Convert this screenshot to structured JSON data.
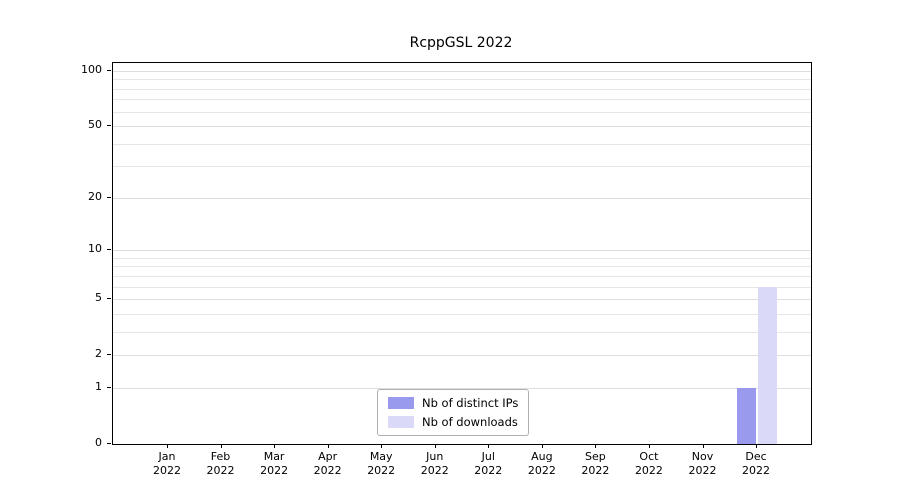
{
  "chart_data": {
    "type": "bar",
    "title": "RcppGSL 2022",
    "y_scale": "log1p",
    "ylim": [
      0,
      105
    ],
    "grid": "horizontal log-spaced minor gridlines",
    "legend_position": "inside bottom-center",
    "y_ticks": [
      {
        "label": "0",
        "value": 0
      },
      {
        "label": "1",
        "value": 1
      },
      {
        "label": "2",
        "value": 2
      },
      {
        "label": "5",
        "value": 5
      },
      {
        "label": "10",
        "value": 10
      },
      {
        "label": "20",
        "value": 20
      },
      {
        "label": "50",
        "value": 50
      },
      {
        "label": "100",
        "value": 100
      }
    ],
    "minor_gridline_values": [
      1,
      2,
      3,
      4,
      5,
      6,
      7,
      8,
      9,
      10,
      20,
      30,
      40,
      50,
      60,
      70,
      80,
      90,
      100
    ],
    "categories": [
      "Jan",
      "Feb",
      "Mar",
      "Apr",
      "May",
      "Jun",
      "Jul",
      "Aug",
      "Sep",
      "Oct",
      "Nov",
      "Dec"
    ],
    "category_year": "2022",
    "series": [
      {
        "name": "Nb of distinct IPs",
        "color": "#9999ee",
        "values": [
          0,
          0,
          0,
          0,
          0,
          0,
          0,
          0,
          0,
          0,
          0,
          1
        ]
      },
      {
        "name": "Nb of downloads",
        "color": "#dadaf8",
        "values": [
          0,
          0,
          0,
          0,
          0,
          0,
          0,
          0,
          0,
          0,
          0,
          6
        ]
      }
    ]
  }
}
